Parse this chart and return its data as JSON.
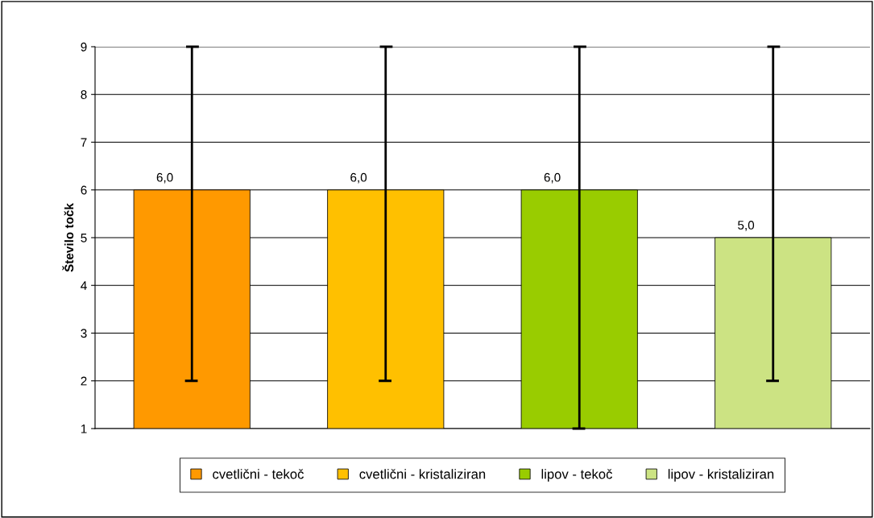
{
  "chart_data": {
    "type": "bar",
    "ylabel": "Število točk",
    "categories": [
      null,
      null,
      null,
      null
    ],
    "series": [
      {
        "name": "cvetlični - tekoč",
        "color": "#ff9900",
        "values": [
          6,
          null,
          null,
          null
        ],
        "errors": [
          [
            2,
            9
          ],
          null,
          null,
          null
        ],
        "value_labels": [
          "6,0",
          null,
          null,
          null
        ]
      },
      {
        "name": "cvetlični - kristaliziran",
        "color": "#ffc000",
        "values": [
          null,
          6,
          null,
          null
        ],
        "errors": [
          null,
          [
            2,
            9
          ],
          null,
          null
        ],
        "value_labels": [
          null,
          "6,0",
          null,
          null
        ]
      },
      {
        "name": "lipov - tekoč",
        "color": "#99cc00",
        "values": [
          null,
          null,
          6,
          null
        ],
        "errors": [
          null,
          null,
          [
            1,
            9
          ],
          null
        ],
        "value_labels": [
          null,
          null,
          "6,0",
          null
        ]
      },
      {
        "name": "lipov - kristaliziran",
        "color": "#cce383",
        "values": [
          null,
          null,
          null,
          5
        ],
        "errors": [
          null,
          null,
          null,
          [
            2,
            9
          ]
        ],
        "value_labels": [
          null,
          null,
          null,
          "5,0"
        ]
      }
    ],
    "ylim": [
      1,
      9
    ],
    "yticks": [
      1,
      2,
      3,
      4,
      5,
      6,
      7,
      8,
      9
    ],
    "grid": "y",
    "legend": "bottom"
  }
}
